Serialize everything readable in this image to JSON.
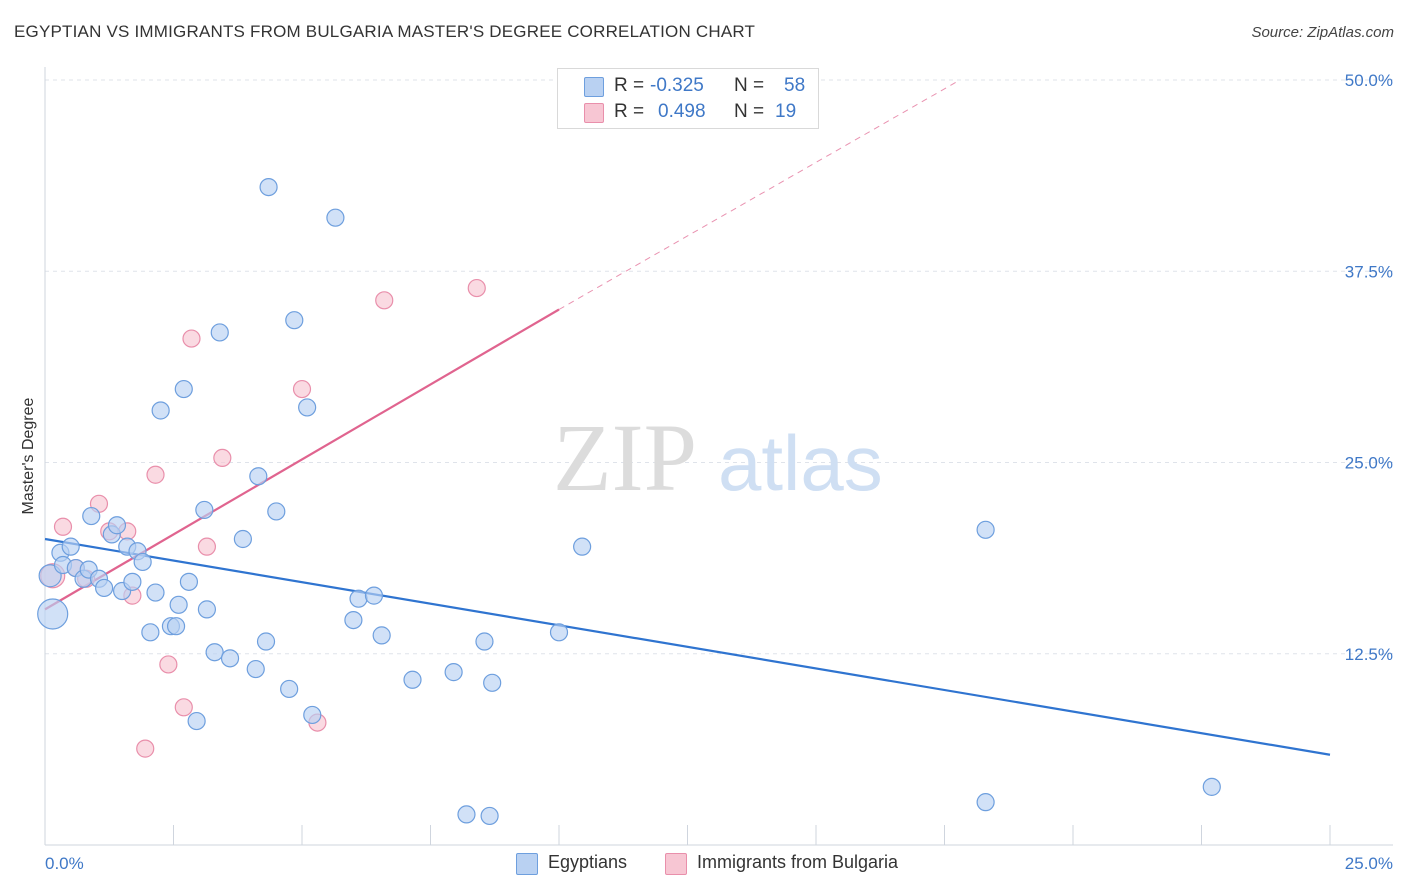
{
  "header": {
    "title": "EGYPTIAN VS IMMIGRANTS FROM BULGARIA MASTER'S DEGREE CORRELATION CHART",
    "source": "Source: ZipAtlas.com"
  },
  "watermark": {
    "part1": "ZIP",
    "part2": "atlas"
  },
  "legend": {
    "rows": [
      {
        "r_label": "R =",
        "r_value": "-0.325",
        "n_label": "N =",
        "n_value": "58"
      },
      {
        "r_label": "R =",
        "r_value": "0.498",
        "n_label": "N =",
        "n_value": "19"
      }
    ]
  },
  "bottom_legend": {
    "series_a": "Egyptians",
    "series_b": "Immigrants from Bulgaria"
  },
  "colors": {
    "blue_fill": "#b9d1f2",
    "blue_stroke": "#6e9fde",
    "blue_line": "#2f74d0",
    "pink_fill": "#f7c6d3",
    "pink_stroke": "#e98fab",
    "pink_line": "#e0648f",
    "grid": "#dfe3ea",
    "tick_text": "#3f78c7"
  },
  "chart_data": {
    "type": "scatter",
    "title": "EGYPTIAN VS IMMIGRANTS FROM BULGARIA MASTER'S DEGREE CORRELATION CHART",
    "xlabel": "",
    "ylabel": "Master's Degree",
    "xlim": [
      0,
      25
    ],
    "ylim": [
      0,
      50
    ],
    "x_tick_labels": [
      "0.0%",
      "25.0%"
    ],
    "y_ticks": [
      12.5,
      25.0,
      37.5,
      50.0
    ],
    "y_tick_labels": [
      "12.5%",
      "25.0%",
      "37.5%",
      "50.0%"
    ],
    "grid": true,
    "series": [
      {
        "name": "Egyptians",
        "color": "blue",
        "R": -0.325,
        "N": 58,
        "trend": {
          "x0": 0,
          "y0": 20.0,
          "x1": 25,
          "y1": 5.9,
          "extrapolate_to": null
        },
        "points": [
          [
            0.1,
            17.6
          ],
          [
            0.15,
            15.1
          ],
          [
            0.3,
            19.1
          ],
          [
            0.35,
            18.3
          ],
          [
            0.5,
            19.5
          ],
          [
            0.6,
            18.1
          ],
          [
            0.75,
            17.4
          ],
          [
            0.85,
            18.0
          ],
          [
            0.9,
            21.5
          ],
          [
            1.05,
            17.4
          ],
          [
            1.15,
            16.8
          ],
          [
            1.3,
            20.3
          ],
          [
            1.4,
            20.9
          ],
          [
            1.5,
            16.6
          ],
          [
            1.6,
            19.5
          ],
          [
            1.7,
            17.2
          ],
          [
            1.8,
            19.2
          ],
          [
            1.9,
            18.5
          ],
          [
            2.05,
            13.9
          ],
          [
            2.15,
            16.5
          ],
          [
            2.25,
            28.4
          ],
          [
            2.45,
            14.3
          ],
          [
            2.55,
            14.3
          ],
          [
            2.6,
            15.7
          ],
          [
            2.7,
            29.8
          ],
          [
            2.8,
            17.2
          ],
          [
            2.95,
            8.1
          ],
          [
            3.1,
            21.9
          ],
          [
            3.15,
            15.4
          ],
          [
            3.3,
            12.6
          ],
          [
            3.4,
            33.5
          ],
          [
            3.6,
            12.2
          ],
          [
            3.85,
            20.0
          ],
          [
            4.1,
            11.5
          ],
          [
            4.15,
            24.1
          ],
          [
            4.3,
            13.3
          ],
          [
            4.35,
            43.0
          ],
          [
            4.5,
            21.8
          ],
          [
            4.75,
            10.2
          ],
          [
            4.85,
            34.3
          ],
          [
            5.1,
            28.6
          ],
          [
            5.2,
            8.5
          ],
          [
            5.65,
            41.0
          ],
          [
            6.0,
            14.7
          ],
          [
            6.1,
            16.1
          ],
          [
            6.4,
            16.3
          ],
          [
            6.55,
            13.7
          ],
          [
            7.15,
            10.8
          ],
          [
            7.95,
            11.3
          ],
          [
            8.2,
            2.0
          ],
          [
            8.55,
            13.3
          ],
          [
            8.65,
            1.9
          ],
          [
            8.7,
            10.6
          ],
          [
            10.0,
            13.9
          ],
          [
            10.45,
            19.5
          ],
          [
            18.3,
            20.6
          ],
          [
            18.3,
            2.8
          ],
          [
            22.7,
            3.8
          ]
        ]
      },
      {
        "name": "Immigrants from Bulgaria",
        "color": "pink",
        "R": 0.498,
        "N": 19,
        "trend": {
          "x0": 0,
          "y0": 15.4,
          "x1": 10.0,
          "y1": 35.0,
          "extrapolate_to": [
            17.8,
            50.0
          ]
        },
        "points": [
          [
            0.15,
            17.6
          ],
          [
            0.35,
            20.8
          ],
          [
            0.6,
            18.1
          ],
          [
            0.8,
            17.4
          ],
          [
            1.05,
            22.3
          ],
          [
            1.25,
            20.5
          ],
          [
            1.6,
            20.5
          ],
          [
            1.7,
            16.3
          ],
          [
            1.95,
            6.3
          ],
          [
            2.15,
            24.2
          ],
          [
            2.4,
            11.8
          ],
          [
            2.7,
            9.0
          ],
          [
            2.85,
            33.1
          ],
          [
            3.15,
            19.5
          ],
          [
            3.45,
            25.3
          ],
          [
            5.0,
            29.8
          ],
          [
            5.3,
            8.0
          ],
          [
            6.6,
            35.6
          ],
          [
            8.4,
            36.4
          ]
        ]
      }
    ]
  }
}
